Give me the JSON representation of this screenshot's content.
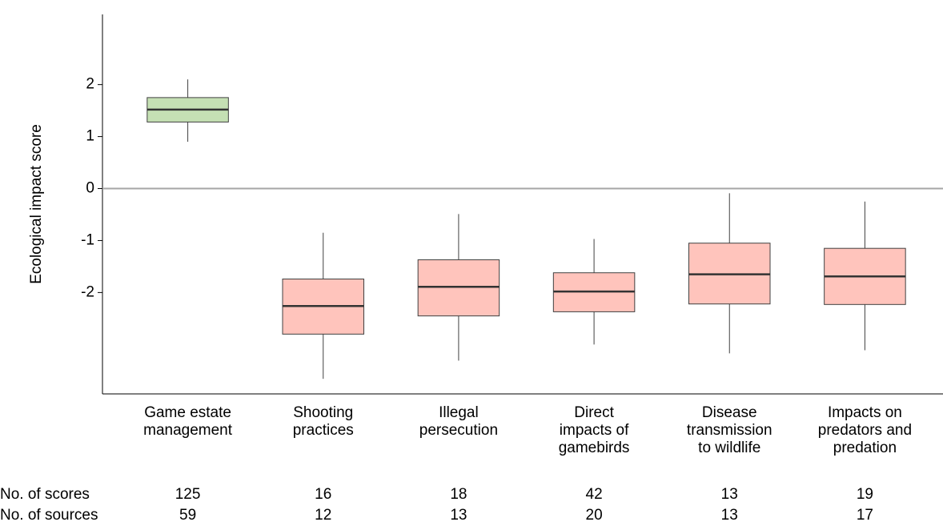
{
  "chart_data": {
    "type": "box",
    "ylabel": "Ecological impact score",
    "categories": [
      "Game estate\nmanagement",
      "Shooting\npractices",
      "Illegal\npersecution",
      "Direct\nimpacts of\ngamebirds",
      "Disease\ntransmission\nto wildlife",
      "Impacts on\npredators and\npredation"
    ],
    "boxes": [
      {
        "min": 0.9,
        "q1": 1.28,
        "median": 1.52,
        "q3": 1.75,
        "max": 2.1
      },
      {
        "min": -3.66,
        "q1": -2.8,
        "median": -2.26,
        "q3": -1.74,
        "max": -0.85
      },
      {
        "min": -3.31,
        "q1": -2.45,
        "median": -1.89,
        "q3": -1.37,
        "max": -0.49
      },
      {
        "min": -3.0,
        "q1": -2.37,
        "median": -1.98,
        "q3": -1.62,
        "max": -0.97
      },
      {
        "min": -3.17,
        "q1": -2.22,
        "median": -1.65,
        "q3": -1.05,
        "max": -0.09
      },
      {
        "min": -3.11,
        "q1": -2.23,
        "median": -1.69,
        "q3": -1.15,
        "max": -0.25
      }
    ],
    "colors": [
      "#c5e0b4",
      "#ffc4bc",
      "#ffc4bc",
      "#ffc4bc",
      "#ffc4bc",
      "#ffc4bc"
    ],
    "ylim": [
      -3.95,
      3.35
    ],
    "yticks": [
      -2,
      -1,
      0,
      1,
      2
    ],
    "reference_line": 0,
    "table": {
      "rows": [
        {
          "label": "No. of scores",
          "values": [
            "125",
            "16",
            "18",
            "42",
            "13",
            "19"
          ]
        },
        {
          "label": "No. of sources",
          "values": [
            "59",
            "12",
            "13",
            "20",
            "13",
            "17"
          ]
        }
      ]
    }
  }
}
